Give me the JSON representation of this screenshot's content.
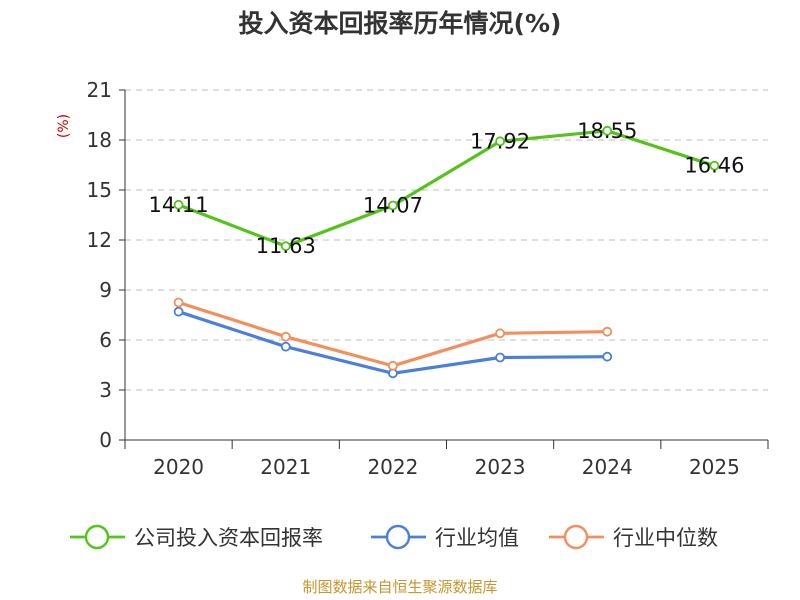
{
  "chart_data": {
    "type": "line",
    "title": "投入资本回报率历年情况(%)",
    "ylabel": "(%)",
    "xlabel": "",
    "categories": [
      "2020",
      "2021",
      "2022",
      "2023",
      "2024",
      "2025"
    ],
    "ylim": [
      0,
      21
    ],
    "yticks": [
      0,
      3,
      6,
      9,
      12,
      15,
      18,
      21
    ],
    "grid": true,
    "legend_position": "bottom",
    "series": [
      {
        "name": "公司投入资本回报率",
        "color": "#52c41a",
        "values": [
          14.11,
          11.63,
          14.07,
          17.92,
          18.55,
          16.46
        ],
        "labels": [
          "14.11",
          "11.63",
          "14.07",
          "17.92",
          "18.55",
          "16.46"
        ]
      },
      {
        "name": "行业均值",
        "color": "#4a7fdc",
        "values": [
          7.7,
          5.6,
          4.0,
          4.95,
          5.0,
          null
        ]
      },
      {
        "name": "行业中位数",
        "color": "#f28f5a",
        "values": [
          8.25,
          6.2,
          4.45,
          6.4,
          6.5,
          null
        ]
      }
    ]
  },
  "footer": "制图数据来自恒生聚源数据库"
}
